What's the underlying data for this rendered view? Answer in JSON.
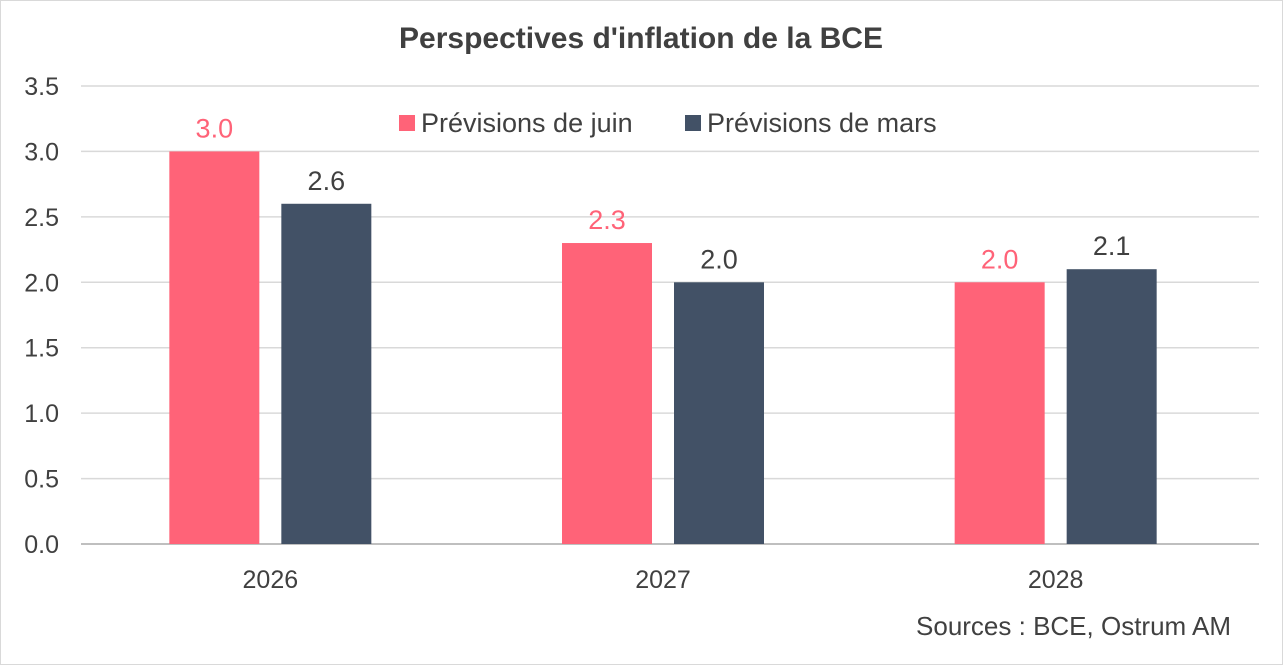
{
  "chart_data": {
    "type": "bar",
    "title": "Perspectives d'inflation de la BCE",
    "categories": [
      "2026",
      "2027",
      "2028"
    ],
    "series": [
      {
        "name": "Prévisions de juin",
        "values": [
          3.0,
          2.3,
          2.0
        ],
        "color": "#ff6378",
        "labels": [
          "3.0",
          "2.3",
          "2.0"
        ]
      },
      {
        "name": "Prévisions de mars",
        "values": [
          2.6,
          2.0,
          2.1
        ],
        "color": "#425166",
        "labels": [
          "2.6",
          "2.0",
          "2.1"
        ]
      }
    ],
    "ylim": [
      0,
      3.5
    ],
    "yticks": [
      0.0,
      0.5,
      1.0,
      1.5,
      2.0,
      2.5,
      3.0,
      3.5
    ],
    "ytick_labels": [
      "0.0",
      "0.5",
      "1.0",
      "1.5",
      "2.0",
      "2.5",
      "3.0",
      "3.5"
    ],
    "xlabel": "",
    "ylabel": "",
    "grid": true,
    "legend_position": "top-right",
    "source": "Sources : BCE, Ostrum AM"
  }
}
